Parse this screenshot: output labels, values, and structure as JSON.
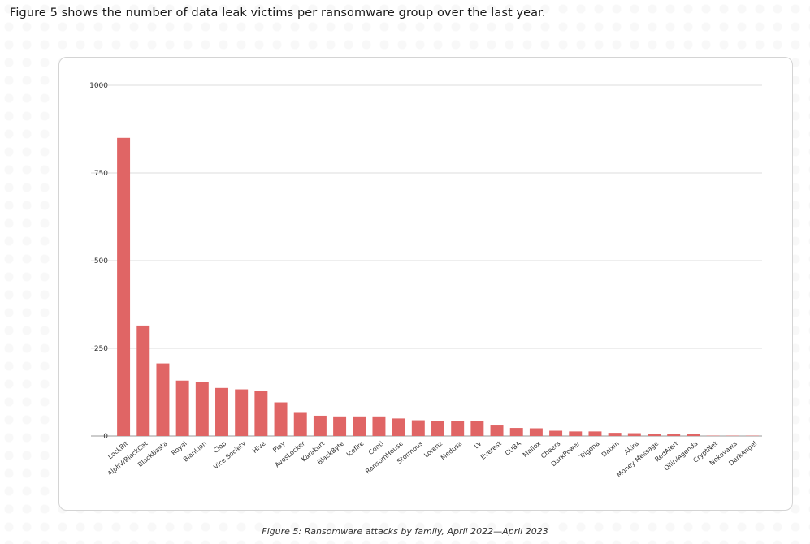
{
  "intro_text": "Figure 5 shows the number of data leak victims per ransomware group over the last year.",
  "caption": "Figure 5: Ransomware attacks by family, April 2022—April 2023",
  "colors": {
    "bar": "#e06565",
    "grid": "#dedede",
    "axis": "#999999"
  },
  "chart_data": {
    "type": "bar",
    "categories": [
      "LockBit",
      "AlphV/BlackCat",
      "BlackBasta",
      "Royal",
      "BianLian",
      "Clop",
      "Vice Society",
      "Hive",
      "Play",
      "AvosLocker",
      "Karakurt",
      "BlackByte",
      "Icefire",
      "Conti",
      "RansomHouse",
      "Stormous",
      "Lorenz",
      "Medusa",
      "LV",
      "Everest",
      "CUBA",
      "Mallox",
      "Cheers",
      "DarkPower",
      "Trigona",
      "Daixin",
      "Akira",
      "Money Message",
      "RedAlert",
      "Qilin/Agenda",
      "CryptNet",
      "Nokoyawa",
      "DarkAngel"
    ],
    "values": [
      850,
      315,
      207,
      158,
      153,
      137,
      133,
      128,
      96,
      66,
      58,
      56,
      56,
      56,
      50,
      45,
      43,
      43,
      43,
      30,
      23,
      22,
      15,
      13,
      13,
      9,
      8,
      6,
      5,
      5,
      1,
      1,
      1
    ],
    "ylim": [
      0,
      1000
    ],
    "yticks": [
      0,
      250,
      500,
      750,
      1000
    ],
    "ytick_labels": [
      "0",
      "250",
      "500",
      "750",
      "1000"
    ],
    "grid": true,
    "legend": "none"
  }
}
